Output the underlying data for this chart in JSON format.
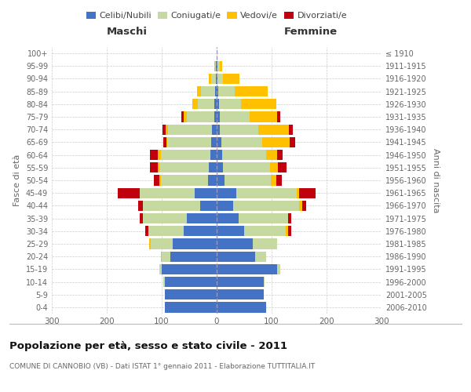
{
  "age_groups": [
    "0-4",
    "5-9",
    "10-14",
    "15-19",
    "20-24",
    "25-29",
    "30-34",
    "35-39",
    "40-44",
    "45-49",
    "50-54",
    "55-59",
    "60-64",
    "65-69",
    "70-74",
    "75-79",
    "80-84",
    "85-89",
    "90-94",
    "95-99",
    "100+"
  ],
  "birth_years": [
    "2006-2010",
    "2001-2005",
    "1996-2000",
    "1991-1995",
    "1986-1990",
    "1981-1985",
    "1976-1980",
    "1971-1975",
    "1966-1970",
    "1961-1965",
    "1956-1960",
    "1951-1955",
    "1946-1950",
    "1941-1945",
    "1936-1940",
    "1931-1935",
    "1926-1930",
    "1921-1925",
    "1916-1920",
    "1911-1915",
    "≤ 1910"
  ],
  "male": {
    "celibi": [
      95,
      95,
      95,
      100,
      85,
      80,
      60,
      55,
      30,
      40,
      16,
      14,
      12,
      10,
      8,
      5,
      5,
      3,
      2,
      1,
      0
    ],
    "coniugati": [
      0,
      0,
      2,
      5,
      15,
      40,
      65,
      80,
      105,
      100,
      85,
      90,
      90,
      80,
      80,
      50,
      30,
      25,
      8,
      2,
      0
    ],
    "vedovi": [
      0,
      0,
      0,
      0,
      2,
      3,
      0,
      0,
      0,
      0,
      3,
      3,
      5,
      2,
      5,
      5,
      10,
      8,
      5,
      2,
      0
    ],
    "divorziati": [
      0,
      0,
      0,
      0,
      0,
      0,
      5,
      5,
      8,
      40,
      10,
      15,
      15,
      5,
      5,
      5,
      0,
      0,
      0,
      0,
      0
    ]
  },
  "female": {
    "nubili": [
      90,
      85,
      85,
      110,
      70,
      65,
      50,
      40,
      30,
      35,
      14,
      12,
      10,
      8,
      6,
      5,
      4,
      3,
      2,
      1,
      0
    ],
    "coniugate": [
      0,
      0,
      2,
      5,
      20,
      45,
      75,
      90,
      120,
      110,
      85,
      85,
      80,
      75,
      70,
      55,
      40,
      30,
      10,
      4,
      0
    ],
    "vedove": [
      0,
      0,
      0,
      0,
      0,
      0,
      5,
      0,
      5,
      5,
      10,
      15,
      20,
      50,
      55,
      50,
      65,
      60,
      30,
      5,
      0
    ],
    "divorziate": [
      0,
      0,
      0,
      0,
      0,
      0,
      5,
      5,
      8,
      30,
      10,
      15,
      10,
      10,
      8,
      5,
      0,
      0,
      0,
      0,
      0
    ]
  },
  "colors": {
    "celibi": "#4472c4",
    "coniugati": "#c5d9a0",
    "vedovi": "#ffc000",
    "divorziati": "#c0000c"
  },
  "xlim": 300,
  "title": "Popolazione per età, sesso e stato civile - 2011",
  "subtitle": "COMUNE DI CANNOBIO (VB) - Dati ISTAT 1° gennaio 2011 - Elaborazione TUTTITALIA.IT",
  "ylabel_left": "Fasce di età",
  "ylabel_right": "Anni di nascita",
  "xlabel_left": "Maschi",
  "xlabel_right": "Femmine",
  "bg_color": "#ffffff",
  "grid_color": "#cccccc"
}
